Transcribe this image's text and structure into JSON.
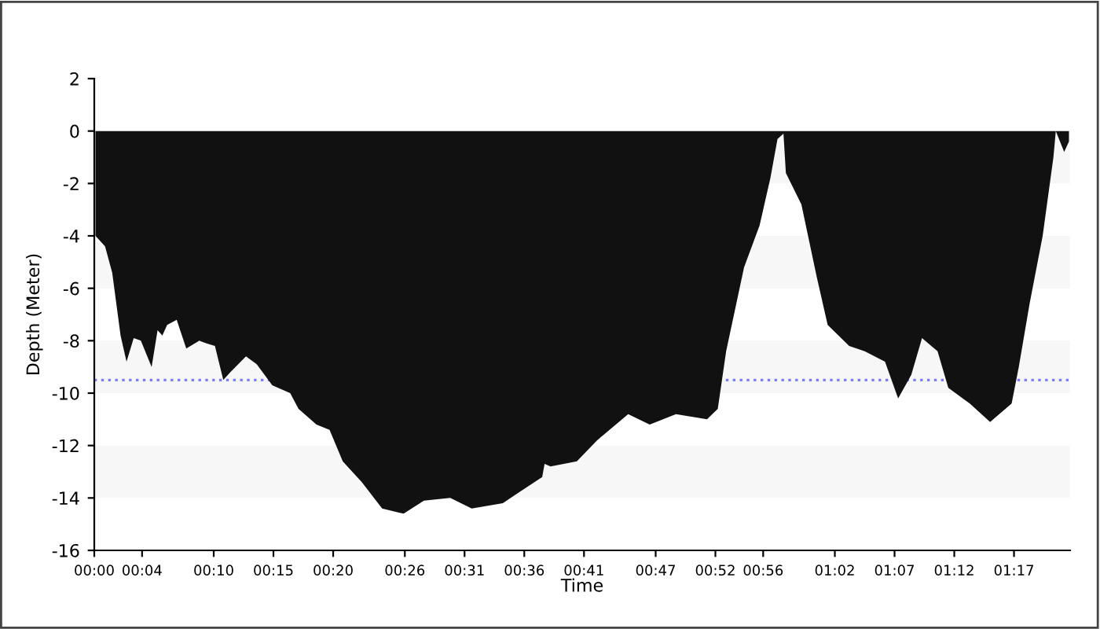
{
  "chart_data": {
    "type": "area",
    "xlabel": "Time",
    "ylabel": "Depth (Meter)",
    "x": [
      0.1,
      0.9,
      1.5,
      2.2,
      2.7,
      3.3,
      3.9,
      4.8,
      5.3,
      5.7,
      6.1,
      6.9,
      7.7,
      8.8,
      9.4,
      10.1,
      10.8,
      11.4,
      12.7,
      13.6,
      14.9,
      16.4,
      17.1,
      18.6,
      19.7,
      20.8,
      22.4,
      24.1,
      25.9,
      27.6,
      29.8,
      31.6,
      34.2,
      35.5,
      37.5,
      37.7,
      38.2,
      40.4,
      42.1,
      44.7,
      46.5,
      48.7,
      51.3,
      52.2,
      52.9,
      54.4,
      55.7,
      56.6,
      57.2,
      57.7,
      57.9,
      59.2,
      60.5,
      61.4,
      63.2,
      64.5,
      66.2,
      67.3,
      68.4,
      69.3,
      70.6,
      71.5,
      73.3,
      75.0,
      76.8,
      77.4,
      78.3,
      79.4,
      80.3,
      80.5,
      81.2,
      81.6
    ],
    "series": [
      {
        "color": "#111111",
        "values": [
          -4.0,
          -4.4,
          -5.4,
          -7.8,
          -8.8,
          -7.9,
          -8.0,
          -9.0,
          -7.6,
          -7.8,
          -7.4,
          -7.2,
          -8.3,
          -8.0,
          -8.1,
          -8.2,
          -9.5,
          -9.2,
          -8.6,
          -8.9,
          -9.7,
          -10.0,
          -10.6,
          -11.2,
          -11.4,
          -12.6,
          -13.4,
          -14.4,
          -14.6,
          -14.1,
          -14.0,
          -14.4,
          -14.2,
          -13.8,
          -13.2,
          -12.7,
          -12.8,
          -12.6,
          -11.8,
          -10.8,
          -11.2,
          -10.8,
          -11.0,
          -10.6,
          -8.4,
          -5.2,
          -3.6,
          -1.8,
          -0.3,
          -0.1,
          -1.6,
          -2.8,
          -5.6,
          -7.4,
          -8.2,
          -8.4,
          -8.8,
          -10.2,
          -9.3,
          -7.9,
          -8.4,
          -9.8,
          -10.4,
          -11.1,
          -10.4,
          -9.0,
          -6.6,
          -4.0,
          -1.0,
          0.0,
          -0.8,
          -0.4
        ]
      }
    ],
    "xlim": [
      0,
      81.7
    ],
    "xticks": [
      {
        "value": 0,
        "label": "00:00"
      },
      {
        "value": 4,
        "label": "00:04"
      },
      {
        "value": 10,
        "label": "00:10"
      },
      {
        "value": 15,
        "label": "00:15"
      },
      {
        "value": 20,
        "label": "00:20"
      },
      {
        "value": 26,
        "label": "00:26"
      },
      {
        "value": 31,
        "label": "00:31"
      },
      {
        "value": 36,
        "label": "00:36"
      },
      {
        "value": 41,
        "label": "00:41"
      },
      {
        "value": 47,
        "label": "00:47"
      },
      {
        "value": 52,
        "label": "00:52"
      },
      {
        "value": 56,
        "label": "00:56"
      },
      {
        "value": 62,
        "label": "01:02"
      },
      {
        "value": 67,
        "label": "01:07"
      },
      {
        "value": 72,
        "label": "01:12"
      },
      {
        "value": 77,
        "label": "01:17"
      }
    ],
    "ylim": [
      -16,
      2
    ],
    "yticks": [
      -16,
      -14,
      -12,
      -10,
      -8,
      -6,
      -4,
      -2,
      0,
      2
    ],
    "bands": [
      {
        "axis": "y",
        "from": 0,
        "to": -2,
        "color": "#f7f7f7"
      },
      {
        "axis": "y",
        "from": -4,
        "to": -6,
        "color": "#f7f7f7"
      },
      {
        "axis": "y",
        "from": -8,
        "to": -10,
        "color": "#f7f7f7"
      },
      {
        "axis": "y",
        "from": -12,
        "to": -14,
        "color": "#f7f7f7"
      }
    ],
    "ref_lines": [
      {
        "axis": "y",
        "value": -9.5,
        "color": "#7b7bff",
        "line_style": "dotted"
      }
    ],
    "grid": false,
    "legend": false
  }
}
